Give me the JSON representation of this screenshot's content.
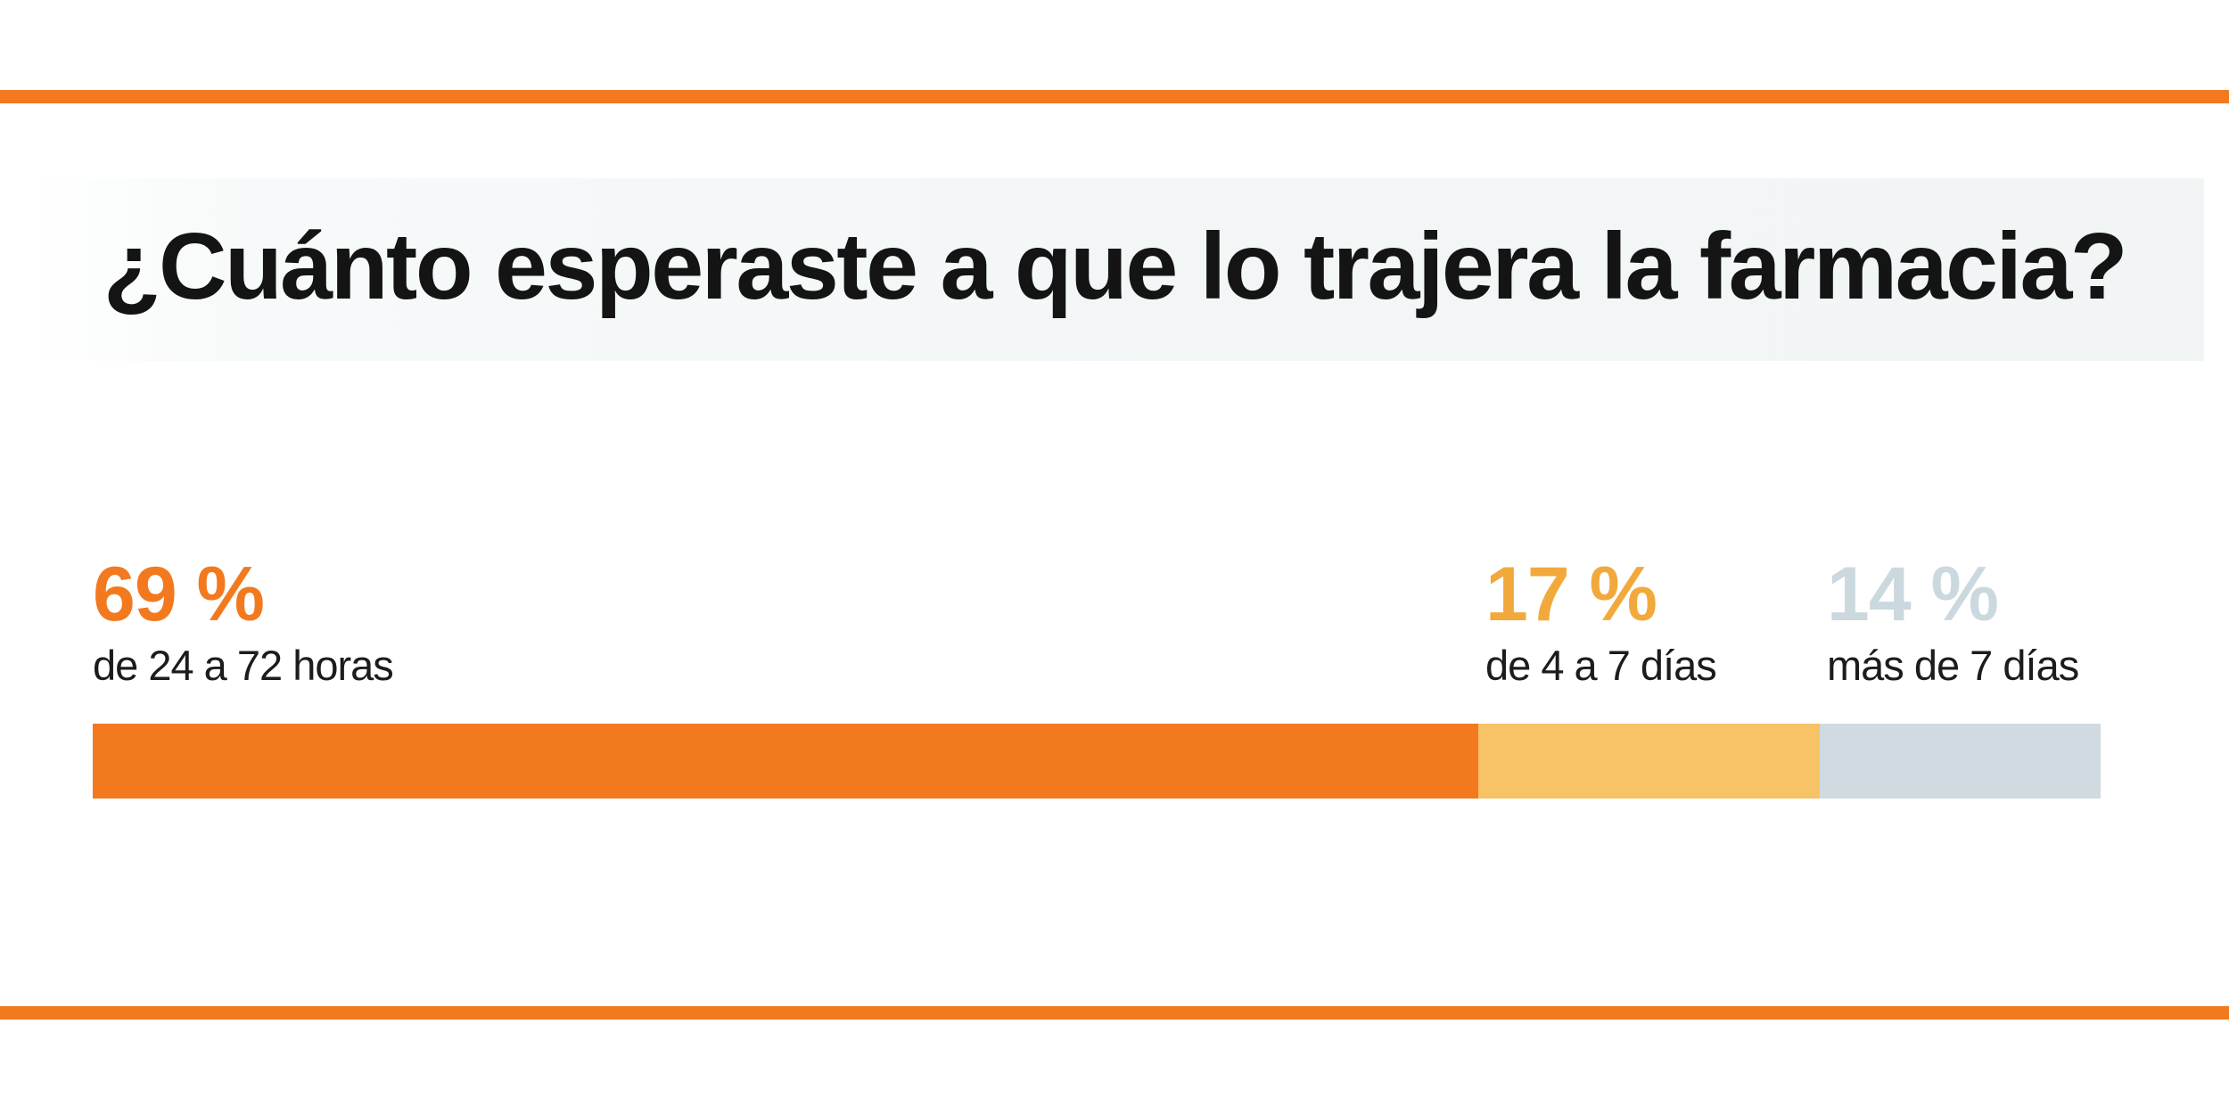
{
  "page": {
    "accent_color": "#F3791F",
    "background_color": "#FFFFFF",
    "title_band_color": "#F1F5F6"
  },
  "chart_data": {
    "type": "bar",
    "variant": "horizontal-stacked-single-bar",
    "title": "¿Cuánto esperaste a que lo trajera la farmacia?",
    "unit": "%",
    "categories": [
      "de 24 a 72 horas",
      "de 4 a 7 días",
      "más de 7 días"
    ],
    "values": [
      69,
      17,
      14
    ],
    "xlim": [
      0,
      100
    ],
    "grid": false,
    "axis_labels_visible": false,
    "legend_position": "labels-above-segment-start",
    "segments": [
      {
        "value": 69,
        "pct_label": "69 %",
        "label": "de 24 a 72 horas",
        "bar_color": "#F3791F",
        "text_color": "#F3791F"
      },
      {
        "value": 17,
        "pct_label": "17 %",
        "label": "de 4 a 7 días",
        "bar_color": "#F8C267",
        "text_color": "#F2A93C"
      },
      {
        "value": 14,
        "pct_label": "14 %",
        "label": "más de 7 días",
        "bar_color": "#CFDBE0",
        "text_color": "#CBD8DE"
      }
    ]
  }
}
